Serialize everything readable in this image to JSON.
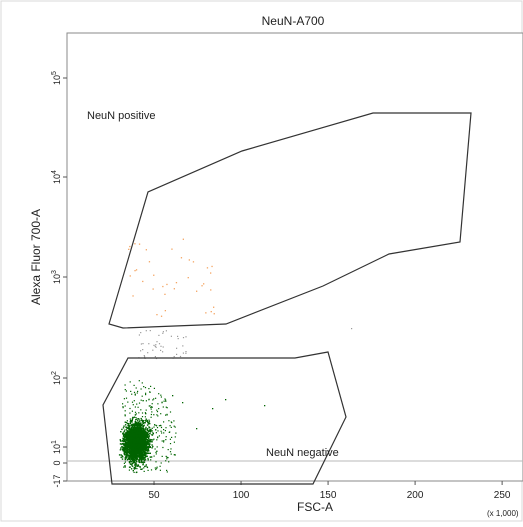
{
  "chart_data": {
    "type": "scatter",
    "title": "NeuN-A700",
    "xlabel": "FSC-A",
    "ylabel": "Alexa Fluor 700-A",
    "x_scale_note": "(x 1,000)",
    "xlim": [
      0,
      262
    ],
    "ylim_ticks_note": "biexponential",
    "x_ticks": [
      50,
      100,
      150,
      200,
      250
    ],
    "y_ticks": [
      {
        "label_base": "-17",
        "label_exp": ""
      },
      {
        "label_base": "0",
        "label_exp": ""
      },
      {
        "label_base": "10",
        "label_exp": "1"
      },
      {
        "label_base": "10",
        "label_exp": "2"
      },
      {
        "label_base": "10",
        "label_exp": "3"
      },
      {
        "label_base": "10",
        "label_exp": "4"
      },
      {
        "label_base": "10",
        "label_exp": "5"
      }
    ],
    "gates": [
      {
        "name": "NeuN positive"
      },
      {
        "name": "NeuN negative"
      }
    ],
    "colors": {
      "negative_population": "#006400",
      "positive_population": "#f4a460",
      "intermediate_events": "#9a9a9a",
      "gate_outline": "#333333",
      "threshold_line": "#b8b8b8"
    }
  }
}
